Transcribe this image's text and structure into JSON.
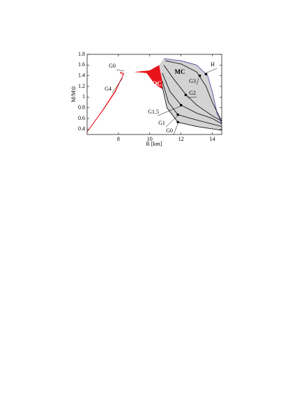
{
  "chart_data": {
    "type": "line",
    "x_label": "R [km]",
    "y_label": "M/M⊙",
    "xlim": [
      6,
      14.6
    ],
    "ylim": [
      0.3,
      1.8
    ],
    "xticks": [
      8,
      10,
      12,
      14
    ],
    "yticks": [
      0.4,
      0.6,
      0.8,
      1,
      1.2,
      1.4,
      1.6,
      1.8
    ],
    "regions": [
      {
        "name": "MC",
        "color": "#d3d3d3",
        "x": [
          10.9,
          12,
          13,
          13.7,
          14,
          14.3,
          14.6,
          14.6,
          13,
          11.8,
          11.1,
          10.8,
          10.7,
          10.6
        ],
        "values": [
          1.72,
          1.68,
          1.6,
          1.4,
          1.1,
          0.7,
          0.5,
          0.37,
          0.44,
          0.52,
          0.8,
          1.2,
          1.5,
          1.6
        ]
      },
      {
        "name": "QC",
        "color": "#e8141c",
        "x": [
          9,
          10,
          10.6,
          10.8,
          10.8,
          10.3,
          9.8
        ],
        "values": [
          1.47,
          1.5,
          1.6,
          1.3,
          1.15,
          1.25,
          1.45
        ]
      }
    ],
    "series": [
      {
        "name": "H",
        "color": "#3a3aa0",
        "x": [
          10.9,
          12,
          13,
          13.7,
          14,
          14.3,
          14.6
        ],
        "values": [
          1.72,
          1.68,
          1.6,
          1.4,
          1.1,
          0.7,
          0.5
        ],
        "point": {
          "x": 13.6,
          "y": 1.43
        }
      },
      {
        "name": "G3",
        "color": "#000000",
        "x": [
          11,
          12,
          13,
          13.6,
          14,
          14.6
        ],
        "values": [
          1.68,
          1.62,
          1.47,
          1.2,
          0.9,
          0.55
        ],
        "point": {
          "x": 13.2,
          "y": 1.4
        }
      },
      {
        "name": "G2",
        "color": "#000000",
        "x": [
          10.9,
          11.5,
          12.3,
          13,
          14,
          14.6
        ],
        "values": [
          1.6,
          1.35,
          1.05,
          0.85,
          0.65,
          0.55
        ],
        "point": {
          "x": 12.3,
          "y": 1.04
        }
      },
      {
        "name": "G1.5",
        "color": "#000000",
        "x": [
          10.8,
          11.3,
          12,
          13,
          14,
          14.6
        ],
        "values": [
          1.45,
          1.1,
          0.85,
          0.7,
          0.6,
          0.5
        ],
        "point": {
          "x": 12,
          "y": 0.85
        }
      },
      {
        "name": "G1",
        "color": "#000000",
        "x": [
          10.8,
          11.2,
          11.8,
          13,
          14.6
        ],
        "values": [
          1.3,
          0.9,
          0.67,
          0.57,
          0.45
        ],
        "point": {
          "x": 11.8,
          "y": 0.67
        }
      },
      {
        "name": "G0",
        "color": "#000000",
        "x": [
          10.8,
          11.1,
          11.8,
          13,
          14.6
        ],
        "values": [
          1.2,
          0.8,
          0.53,
          0.45,
          0.38
        ],
        "point": {
          "x": 11.8,
          "y": 0.53
        }
      },
      {
        "name": "G4",
        "color": "#e8141c",
        "x": [
          6,
          7,
          7.8,
          8.2,
          8.3,
          8.1
        ],
        "values": [
          0.35,
          0.75,
          1.1,
          1.35,
          1.42,
          1.46
        ]
      },
      {
        "name": "G0",
        "color": "#e8141c",
        "x": [
          6,
          7,
          7.8,
          8.25,
          8.35,
          8.1
        ],
        "values": [
          0.35,
          0.76,
          1.12,
          1.38,
          1.44,
          1.47
        ]
      }
    ]
  }
}
